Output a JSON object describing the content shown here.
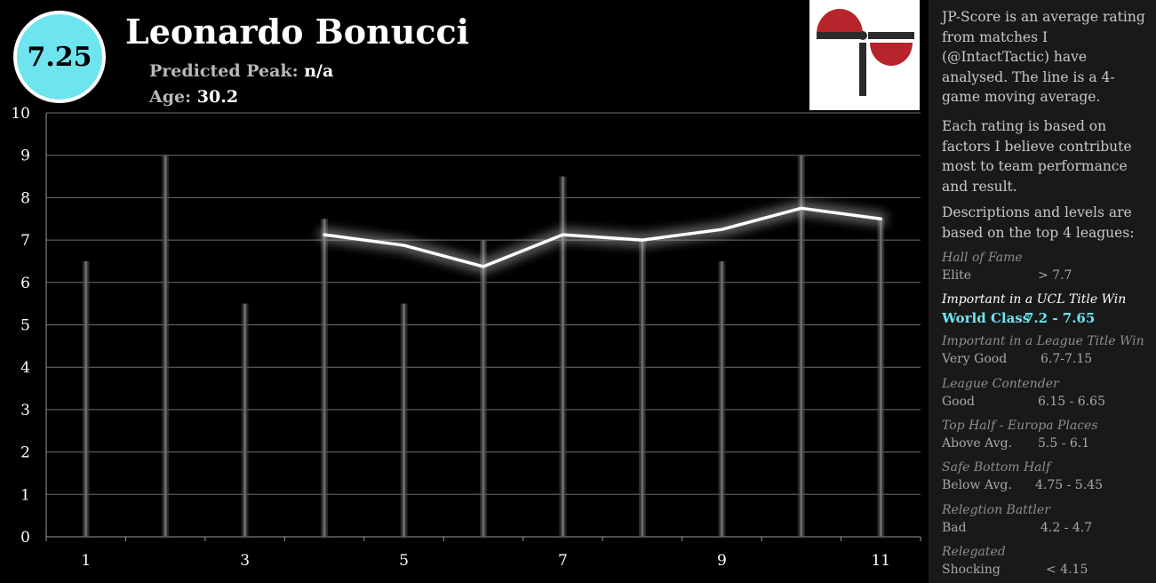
{
  "header": {
    "score": "7.25",
    "player_name": "Leonardo Bonucci",
    "peak_label": "Predicted Peak:",
    "peak_value": "n/a",
    "age_label": "Age:",
    "age_value": "30.2"
  },
  "logo": {
    "icon": "jp-logo-icon",
    "colors": {
      "red": "#b8242b",
      "dark": "#2b2b2b"
    }
  },
  "colors": {
    "background": "#000000",
    "badge": "#6ee4ee",
    "panel": "#191919",
    "highlight": "#6ee4ee",
    "bar": "#6a6a6a",
    "line": "#ffffff"
  },
  "chart_data": {
    "type": "bar",
    "x": [
      1,
      2,
      3,
      4,
      5,
      6,
      7,
      8,
      9,
      10,
      11
    ],
    "values": [
      6.5,
      9,
      5.5,
      7.5,
      5.5,
      7,
      8.5,
      7,
      6.5,
      9,
      7.5
    ],
    "moving_average": {
      "x": [
        4,
        5,
        6,
        7,
        8,
        9,
        10,
        11
      ],
      "values": [
        7.125,
        6.875,
        6.375,
        7.125,
        7.0,
        7.25,
        7.75,
        7.5
      ]
    },
    "ylim": [
      0,
      10
    ],
    "yticks": [
      "0",
      "1",
      "2",
      "3",
      "4",
      "5",
      "6",
      "7",
      "8",
      "9",
      "10"
    ],
    "xticks": [
      {
        "x": 1,
        "label": "1"
      },
      {
        "x": 3,
        "label": "3"
      },
      {
        "x": 5,
        "label": "5"
      },
      {
        "x": 7,
        "label": "7"
      },
      {
        "x": 9,
        "label": "9"
      },
      {
        "x": 11,
        "label": "11"
      }
    ],
    "grid": true,
    "title": "",
    "xlabel": "",
    "ylabel": ""
  },
  "info": {
    "para1": "JP-Score is an average rating from matches I (@IntactTactic) have analysed. The line is a 4-game moving average.",
    "para2": "Each rating is based on factors I believe contribute most to team performance and result.",
    "para3": "Descriptions and levels are based on the top 4 leagues:",
    "tiers": [
      {
        "name": "Hall of Fame",
        "level": "Elite",
        "range": "> 7.7"
      },
      {
        "name": "Important in a UCL Title Win",
        "level": "World Class",
        "range": "7.2 - 7.65"
      },
      {
        "name": "Important in a League Title Win",
        "level": "Very Good",
        "range": "6.7-7.15"
      },
      {
        "name": "League Contender",
        "level": "Good",
        "range": "6.15 - 6.65"
      },
      {
        "name": "Top Half - Europa Places",
        "level": "Above Avg.",
        "range": "5.5 - 6.1"
      },
      {
        "name": "Safe Bottom Half",
        "level": "Below Avg.",
        "range": "4.75 - 5.45"
      },
      {
        "name": "Relegtion Battler",
        "level": "Bad",
        "range": "4.2 - 4.7"
      },
      {
        "name": "Relegated",
        "level": "Shocking",
        "range": "< 4.15"
      }
    ],
    "highlight_index": 1
  }
}
